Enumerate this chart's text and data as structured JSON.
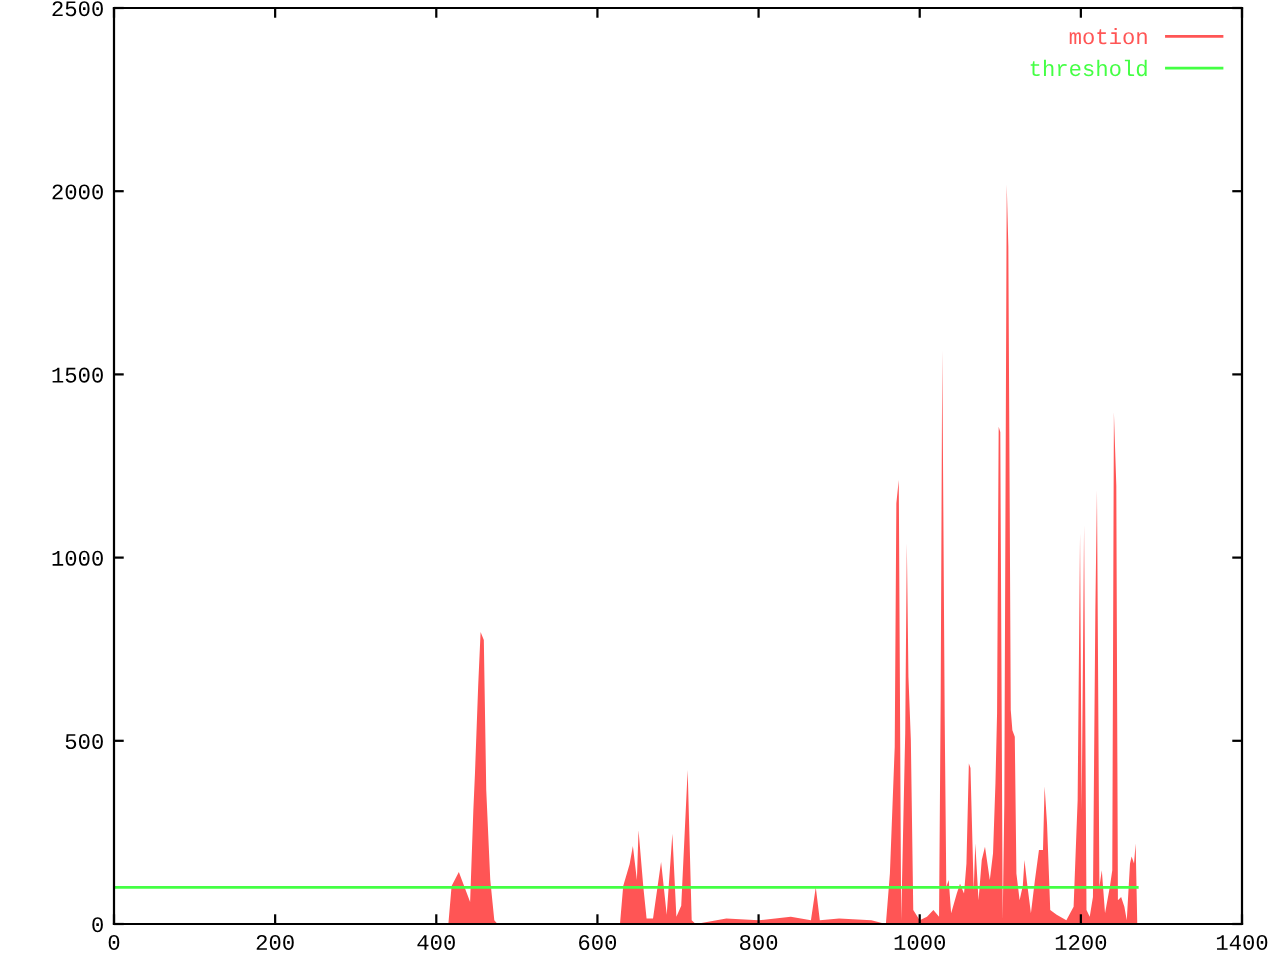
{
  "chart_data": {
    "type": "area",
    "xlim": [
      0,
      1400
    ],
    "ylim": [
      0,
      2500
    ],
    "xticks": [
      0,
      200,
      400,
      600,
      800,
      1000,
      1200,
      1400
    ],
    "yticks": [
      0,
      500,
      1000,
      1500,
      2000,
      2500
    ],
    "grid": false,
    "legend": "top right",
    "series": [
      {
        "name": "motion",
        "color": "#ff5555",
        "x": [
          0,
          415,
          419,
          428,
          442,
          446,
          448,
          452,
          455,
          459,
          462,
          467,
          472,
          476,
          628,
          632,
          640,
          644,
          649,
          651,
          657,
          661,
          669,
          679,
          686,
          693,
          698,
          704,
          712,
          717,
          722,
          760,
          800,
          840,
          865,
          871,
          876,
          900,
          940,
          958,
          963,
          969,
          971,
          974,
          977,
          982,
          984,
          986,
          989,
          992,
          1000,
          1009,
          1017,
          1024,
          1026,
          1028,
          1031,
          1033,
          1036,
          1039,
          1046,
          1050,
          1055,
          1058,
          1061,
          1063,
          1067,
          1069,
          1073,
          1077,
          1081,
          1087,
          1091,
          1094,
          1096,
          1098,
          1100,
          1103,
          1105,
          1108,
          1110,
          1113,
          1115,
          1118,
          1120,
          1124,
          1128,
          1130,
          1133,
          1138,
          1143,
          1148,
          1153,
          1155,
          1158,
          1162,
          1170,
          1182,
          1191,
          1196,
          1199,
          1201,
          1204,
          1207,
          1211,
          1215,
          1218,
          1220,
          1223,
          1226,
          1230,
          1236,
          1239,
          1241,
          1244,
          1246,
          1250,
          1254,
          1257,
          1261,
          1263,
          1266,
          1268,
          1270
        ],
        "values": [
          0,
          0,
          104,
          142,
          60,
          311,
          410,
          650,
          797,
          775,
          366,
          120,
          10,
          0,
          0,
          104,
          164,
          213,
          120,
          256,
          100,
          15,
          15,
          169,
          25,
          246,
          20,
          50,
          420,
          10,
          0,
          15,
          10,
          20,
          10,
          100,
          10,
          15,
          10,
          0,
          138,
          484,
          1148,
          1212,
          10,
          520,
          1039,
          675,
          502,
          38,
          10,
          20,
          38,
          20,
          611,
          1566,
          566,
          102,
          120,
          29,
          83,
          110,
          83,
          165,
          438,
          426,
          93,
          220,
          65,
          175,
          211,
          120,
          193,
          384,
          575,
          1357,
          1343,
          10,
          329,
          2018,
          1848,
          584,
          529,
          511,
          138,
          65,
          105,
          175,
          116,
          29,
          120,
          202,
          202,
          375,
          275,
          38,
          25,
          10,
          47,
          338,
          1066,
          311,
          1088,
          38,
          20,
          74,
          857,
          1184,
          102,
          147,
          29,
          102,
          147,
          1397,
          1197,
          65,
          74,
          47,
          10,
          165,
          184,
          165,
          220,
          0
        ]
      },
      {
        "name": "threshold",
        "color": "#44ff44",
        "type": "line",
        "x": [
          0,
          1270
        ],
        "values": [
          100,
          100
        ]
      }
    ]
  }
}
